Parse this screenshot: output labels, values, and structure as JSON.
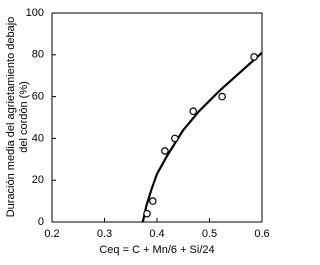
{
  "chart_data": {
    "type": "scatter",
    "xlabel": "Ceq = C + Mn/6 + Si/24",
    "ylabel": [
      "Duración media del agrietamiento debajo",
      "del cordón (%)"
    ],
    "xlim": [
      0.2,
      0.6
    ],
    "xticks": [
      0.2,
      0.3,
      0.4,
      0.5,
      0.6
    ],
    "ylim": [
      0,
      100
    ],
    "yticks": [
      0,
      20,
      40,
      60,
      80,
      100
    ],
    "grid": false,
    "series": [
      {
        "style": "markers",
        "color": "#000000",
        "x": [
          0.381,
          0.392,
          0.415,
          0.434,
          0.469,
          0.524,
          0.585
        ],
        "values": [
          4,
          10,
          34,
          40,
          53,
          60,
          79
        ]
      },
      {
        "style": "line",
        "color": "#000000",
        "x": [
          0.373,
          0.38,
          0.39,
          0.4,
          0.42,
          0.45,
          0.48,
          0.52,
          0.56,
          0.6
        ],
        "values": [
          0,
          8,
          16,
          23,
          32,
          44,
          53,
          63,
          72,
          81
        ]
      }
    ]
  }
}
